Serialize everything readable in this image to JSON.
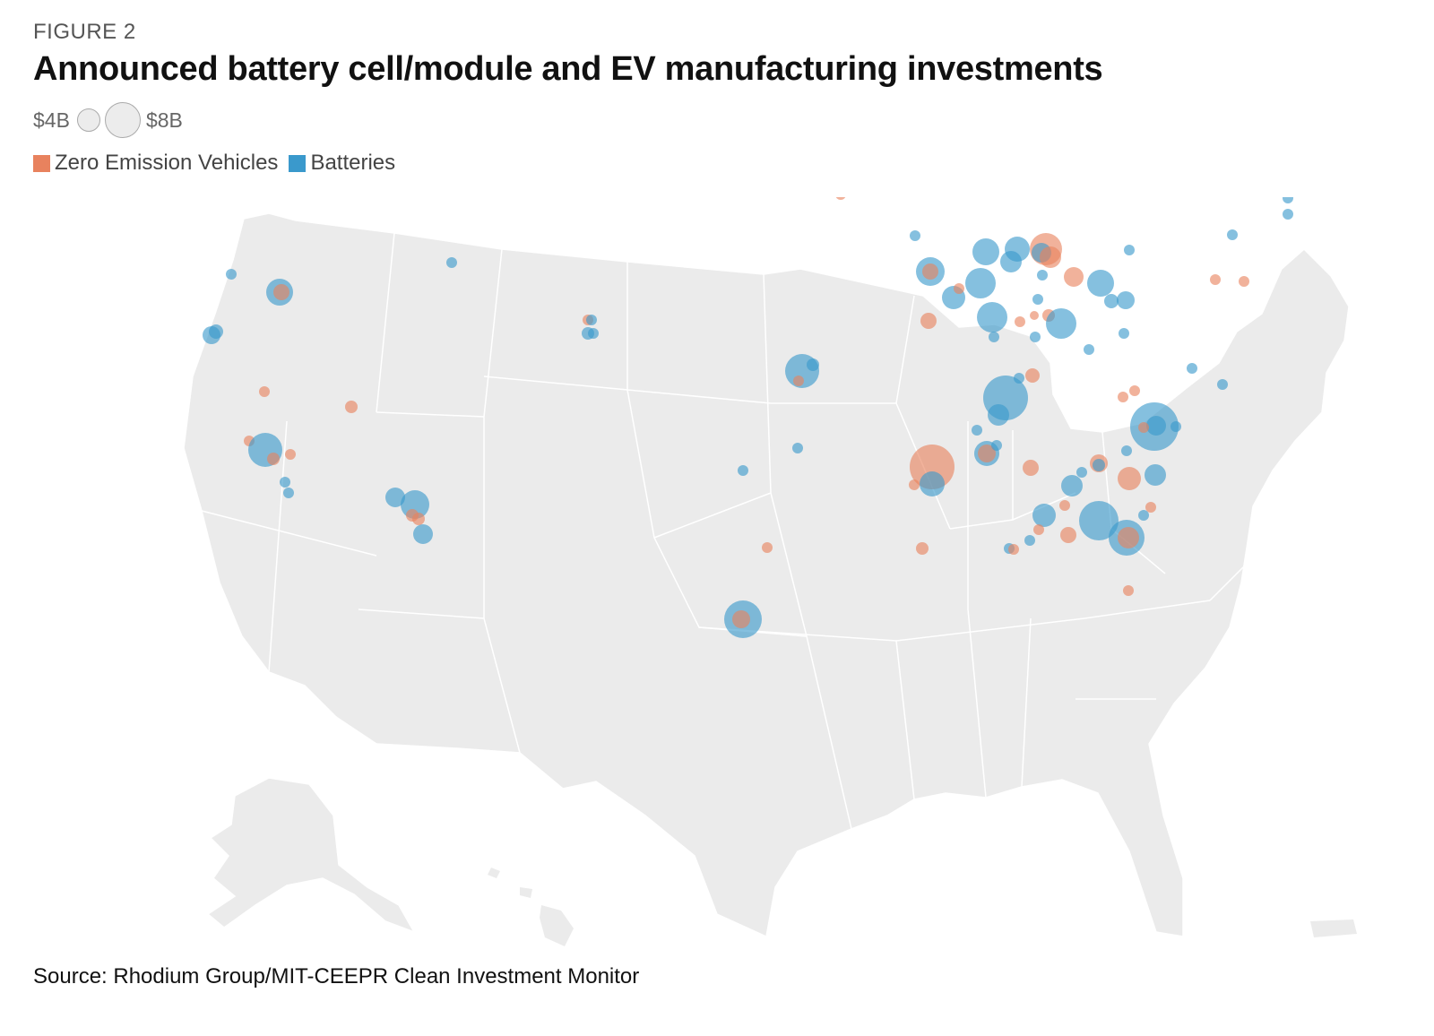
{
  "header": {
    "eyebrow": "FIGURE 2",
    "title": "Announced battery cell/module and EV manufacturing investments"
  },
  "size_legend": {
    "small_label": "$4B",
    "large_label": "$8B"
  },
  "color_legend": {
    "items": [
      {
        "label": "Zero Emission Vehicles",
        "color": "#e8825e"
      },
      {
        "label": "Batteries",
        "color": "#3a99cc"
      }
    ]
  },
  "source": "Source: Rhodium Group/MIT-CEEPR Clean Investment Monitor",
  "colors": {
    "land": "#ebebeb",
    "border": "#ffffff",
    "zev": "#e8825e",
    "battery": "#3a99cc"
  }
}
